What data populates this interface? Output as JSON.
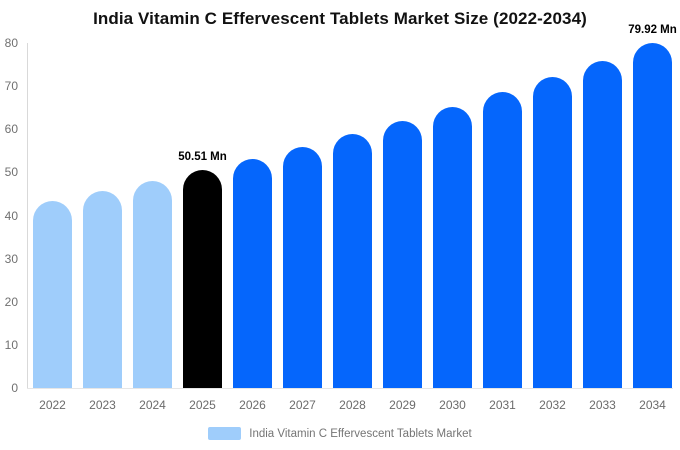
{
  "title": "India Vitamin C Effervescent Tablets Market Size (2022-2034)",
  "colors": {
    "light_blue": "#9FCDFB",
    "bright_blue": "#0566FC",
    "highlight_black": "#000000",
    "axis_line": "#D9D9D9",
    "tick_text": "#707070",
    "legend_text": "#757575"
  },
  "chart_data": {
    "type": "bar",
    "title": "India Vitamin C Effervescent Tablets Market Size (2022-2034)",
    "unit": "Mn",
    "categories": [
      "2022",
      "2023",
      "2024",
      "2025",
      "2026",
      "2027",
      "2028",
      "2029",
      "2030",
      "2031",
      "2032",
      "2033",
      "2034"
    ],
    "values": [
      43.35,
      45.62,
      48.0,
      50.51,
      53.15,
      55.93,
      58.85,
      61.93,
      65.17,
      68.58,
      72.17,
      75.94,
      79.92
    ],
    "point_labels": {
      "2025": "50.51 Mn",
      "2034": "79.92 Mn"
    },
    "bar_colors": {
      "2022": "#9FCDFB",
      "2023": "#9FCDFB",
      "2024": "#9FCDFB",
      "2025": "#000000",
      "2026": "#0566FC",
      "2027": "#0566FC",
      "2028": "#0566FC",
      "2029": "#0566FC",
      "2030": "#0566FC",
      "2031": "#0566FC",
      "2032": "#0566FC",
      "2033": "#0566FC",
      "2034": "#0566FC"
    },
    "xlabel": "",
    "ylabel": "",
    "ylim": [
      0,
      80
    ],
    "yticks": [
      0,
      10,
      20,
      30,
      40,
      50,
      60,
      70,
      80
    ],
    "grid": false,
    "legend": {
      "position": "bottom",
      "label": "India Vitamin C Effervescent Tablets Market",
      "swatch_color": "#9FCDFB"
    }
  }
}
